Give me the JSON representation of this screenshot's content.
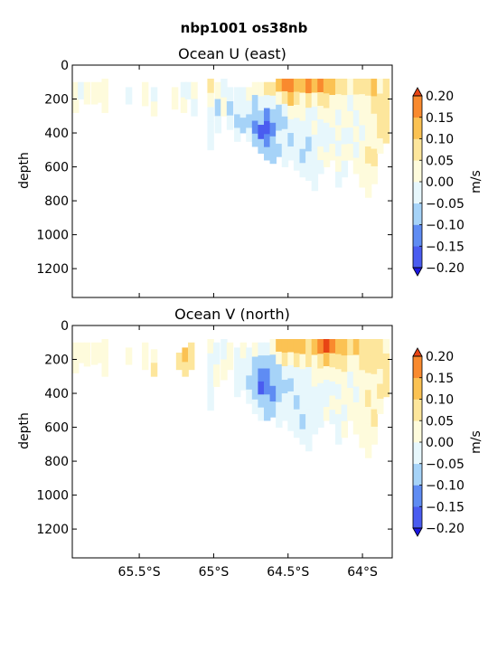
{
  "figure": {
    "suptitle": "nbp1001 os38nb"
  },
  "colorbar": {
    "label": "m/s",
    "ticks": [
      "0.20",
      "0.15",
      "0.10",
      "0.05",
      "0.00",
      "−0.05",
      "−0.10",
      "−0.15",
      "−0.20"
    ],
    "levels": [
      -0.2,
      -0.15,
      -0.1,
      -0.05,
      0.0,
      0.05,
      0.1,
      0.15,
      0.2
    ],
    "colors": [
      "#4a5cf0",
      "#5f8cf3",
      "#a6d3f8",
      "#e7f7fc",
      "#fefbdc",
      "#fde69c",
      "#fbc253",
      "#f98a2e"
    ],
    "under_color": "#1b16e0",
    "over_color": "#e84414"
  },
  "chart_data": [
    {
      "type": "heatmap",
      "title": "Ocean U (east)",
      "xlabel": "",
      "ylabel": "depth",
      "x_ticks": [
        -65.5,
        -65.0,
        -64.5,
        -64.0
      ],
      "x_tick_labels": [
        "",
        "",
        "",
        ""
      ],
      "xlim": [
        -65.95,
        -63.8
      ],
      "y_ticks": [
        0,
        200,
        400,
        600,
        800,
        1000,
        1200
      ],
      "y_tick_labels": [
        "0",
        "200",
        "400",
        "600",
        "800",
        "1000",
        "1200"
      ],
      "ylim_inverted": [
        0,
        1370
      ],
      "columns": [
        {
          "lat": -65.93,
          "top": 100,
          "bottom": 280,
          "v": [
            0.02,
            0.0
          ]
        },
        {
          "lat": -65.89,
          "top": 100,
          "bottom": 200,
          "v": [
            -0.03
          ]
        },
        {
          "lat": -65.85,
          "top": 100,
          "bottom": 230,
          "v": [
            0.03,
            0.01
          ]
        },
        {
          "lat": -65.8,
          "top": 100,
          "bottom": 230,
          "v": [
            0.02,
            0.04
          ]
        },
        {
          "lat": -65.76,
          "top": 100,
          "bottom": 220,
          "v": [
            0.01
          ]
        },
        {
          "lat": -65.73,
          "top": 80,
          "bottom": 280,
          "v": [
            0.03,
            0.0
          ]
        },
        {
          "lat": -65.57,
          "top": 130,
          "bottom": 230,
          "v": [
            -0.02
          ]
        },
        {
          "lat": -65.46,
          "top": 100,
          "bottom": 240,
          "v": [
            0.01
          ]
        },
        {
          "lat": -65.4,
          "top": 130,
          "bottom": 300,
          "v": [
            -0.02,
            0.0
          ]
        },
        {
          "lat": -65.26,
          "top": 130,
          "bottom": 260,
          "v": [
            0.02
          ]
        },
        {
          "lat": -65.2,
          "top": 100,
          "bottom": 280,
          "v": [
            -0.04,
            0.03
          ]
        },
        {
          "lat": -65.17,
          "top": 100,
          "bottom": 200,
          "v": [
            -0.02
          ]
        },
        {
          "lat": -65.13,
          "top": 100,
          "bottom": 300,
          "v": [
            0.02,
            -0.01
          ]
        },
        {
          "lat": -65.02,
          "top": 80,
          "bottom": 500,
          "v": [
            0.08,
            0.01,
            -0.04,
            -0.01,
            -0.02
          ]
        },
        {
          "lat": -64.97,
          "top": 100,
          "bottom": 400,
          "v": [
            0.02,
            -0.06,
            -0.02
          ]
        },
        {
          "lat": -64.93,
          "top": 80,
          "bottom": 300,
          "v": [
            -0.03,
            0.0
          ]
        },
        {
          "lat": -64.89,
          "top": 130,
          "bottom": 380,
          "v": [
            -0.02,
            -0.07,
            -0.01
          ]
        },
        {
          "lat": -64.84,
          "top": 130,
          "bottom": 450,
          "v": [
            -0.04,
            -0.03,
            -0.06,
            -0.02
          ]
        },
        {
          "lat": -64.8,
          "top": 130,
          "bottom": 400,
          "v": [
            -0.01,
            -0.05,
            -0.08
          ]
        },
        {
          "lat": -64.76,
          "top": 130,
          "bottom": 450,
          "v": [
            0.02,
            -0.04,
            -0.06,
            -0.03
          ]
        },
        {
          "lat": -64.72,
          "top": 100,
          "bottom": 480,
          "v": [
            0.01,
            -0.06,
            -0.08,
            -0.12,
            -0.06
          ]
        },
        {
          "lat": -64.68,
          "top": 100,
          "bottom": 520,
          "v": [
            0.03,
            -0.04,
            -0.1,
            -0.16,
            -0.08
          ]
        },
        {
          "lat": -64.64,
          "top": 100,
          "bottom": 560,
          "v": [
            0.05,
            -0.02,
            -0.12,
            -0.17,
            -0.14,
            -0.08
          ]
        },
        {
          "lat": -64.6,
          "top": 100,
          "bottom": 580,
          "v": [
            0.08,
            -0.04,
            -0.08,
            -0.12,
            -0.1,
            -0.06
          ]
        },
        {
          "lat": -64.56,
          "top": 80,
          "bottom": 540,
          "v": [
            0.12,
            0.02,
            -0.06,
            -0.08,
            -0.04,
            -0.06
          ]
        },
        {
          "lat": -64.52,
          "top": 80,
          "bottom": 600,
          "v": [
            0.16,
            0.06,
            -0.02,
            -0.06,
            -0.02,
            -0.04,
            -0.03
          ]
        },
        {
          "lat": -64.48,
          "top": 80,
          "bottom": 560,
          "v": [
            0.18,
            0.1,
            0.02,
            -0.04,
            -0.06,
            -0.02
          ]
        },
        {
          "lat": -64.44,
          "top": 80,
          "bottom": 620,
          "v": [
            0.13,
            0.08,
            0.03,
            -0.03,
            -0.05,
            -0.04,
            -0.02
          ]
        },
        {
          "lat": -64.4,
          "top": 80,
          "bottom": 660,
          "v": [
            0.14,
            0.04,
            0.01,
            -0.04,
            -0.02,
            -0.06,
            -0.03
          ]
        },
        {
          "lat": -64.36,
          "top": 80,
          "bottom": 680,
          "v": [
            0.16,
            0.06,
            -0.02,
            -0.04,
            -0.06,
            -0.03,
            -0.05
          ]
        },
        {
          "lat": -64.32,
          "top": 80,
          "bottom": 740,
          "v": [
            0.12,
            0.03,
            -0.02,
            0.01,
            -0.04,
            -0.02,
            -0.05,
            -0.03
          ]
        },
        {
          "lat": -64.28,
          "top": 80,
          "bottom": 640,
          "v": [
            0.15,
            0.05,
            0.02,
            -0.02,
            -0.04,
            0.01,
            -0.02
          ]
        },
        {
          "lat": -64.24,
          "top": 80,
          "bottom": 600,
          "v": [
            0.12,
            0.08,
            0.03,
            -0.01,
            -0.03,
            0.0
          ]
        },
        {
          "lat": -64.2,
          "top": 80,
          "bottom": 560,
          "v": [
            0.1,
            0.04,
            0.02,
            -0.02,
            0.01
          ]
        },
        {
          "lat": -64.16,
          "top": 80,
          "bottom": 720,
          "v": [
            0.06,
            0.03,
            -0.02,
            0.02,
            -0.01,
            0.0,
            -0.02
          ]
        },
        {
          "lat": -64.12,
          "top": 80,
          "bottom": 660,
          "v": [
            0.08,
            0.02,
            0.03,
            -0.02,
            0.01,
            -0.01
          ]
        },
        {
          "lat": -64.08,
          "top": 80,
          "bottom": 560,
          "v": [
            0.04,
            -0.03,
            0.02,
            -0.02,
            0.0
          ]
        },
        {
          "lat": -64.04,
          "top": 80,
          "bottom": 640,
          "v": [
            0.06,
            0.01,
            -0.02,
            0.03,
            -0.01,
            0.01
          ]
        },
        {
          "lat": -64.0,
          "top": 80,
          "bottom": 720,
          "v": [
            0.08,
            0.04,
            0.02,
            -0.01,
            0.02,
            0.03,
            0.01
          ]
        },
        {
          "lat": -63.96,
          "top": 80,
          "bottom": 780,
          "v": [
            0.07,
            0.03,
            0.04,
            0.02,
            0.05,
            0.01,
            0.03
          ]
        },
        {
          "lat": -63.92,
          "top": 80,
          "bottom": 700,
          "v": [
            0.1,
            0.06,
            0.04,
            0.03,
            0.05,
            0.02
          ]
        },
        {
          "lat": -63.88,
          "top": 80,
          "bottom": 520,
          "v": [
            0.04,
            0.08,
            0.06,
            0.07,
            0.04
          ]
        },
        {
          "lat": -63.84,
          "top": 80,
          "bottom": 460,
          "v": [
            0.05,
            0.07,
            0.09,
            0.06
          ]
        }
      ]
    },
    {
      "type": "heatmap",
      "title": "Ocean V (north)",
      "xlabel": "",
      "ylabel": "depth",
      "x_ticks": [
        -65.5,
        -65.0,
        -64.5,
        -64.0
      ],
      "x_tick_labels": [
        "65.5°S",
        "65°S",
        "64.5°S",
        "64°S"
      ],
      "xlim": [
        -65.95,
        -63.8
      ],
      "y_ticks": [
        0,
        200,
        400,
        600,
        800,
        1000,
        1200
      ],
      "y_tick_labels": [
        "0",
        "200",
        "400",
        "600",
        "800",
        "1000",
        "1200"
      ],
      "ylim_inverted": [
        0,
        1370
      ],
      "columns": [
        {
          "lat": -65.93,
          "top": 100,
          "bottom": 280,
          "v": [
            0.01,
            0.03
          ]
        },
        {
          "lat": -65.89,
          "top": 100,
          "bottom": 220,
          "v": [
            0.03
          ]
        },
        {
          "lat": -65.85,
          "top": 100,
          "bottom": 240,
          "v": [
            0.02,
            0.01
          ]
        },
        {
          "lat": -65.8,
          "top": 100,
          "bottom": 230,
          "v": [
            0.03,
            0.02
          ]
        },
        {
          "lat": -65.76,
          "top": 100,
          "bottom": 220,
          "v": [
            0.01
          ]
        },
        {
          "lat": -65.73,
          "top": 80,
          "bottom": 300,
          "v": [
            0.02,
            0.01
          ]
        },
        {
          "lat": -65.57,
          "top": 130,
          "bottom": 230,
          "v": [
            0.02
          ]
        },
        {
          "lat": -65.46,
          "top": 100,
          "bottom": 260,
          "v": [
            0.02
          ]
        },
        {
          "lat": -65.4,
          "top": 140,
          "bottom": 300,
          "v": [
            0.03,
            0.08
          ]
        },
        {
          "lat": -65.23,
          "top": 160,
          "bottom": 260,
          "v": [
            0.08
          ]
        },
        {
          "lat": -65.19,
          "top": 130,
          "bottom": 300,
          "v": [
            0.11,
            0.08
          ]
        },
        {
          "lat": -65.15,
          "top": 100,
          "bottom": 260,
          "v": [
            0.06
          ]
        },
        {
          "lat": -65.02,
          "top": 80,
          "bottom": 500,
          "v": [
            0.01,
            -0.03,
            -0.02,
            -0.05,
            -0.03
          ]
        },
        {
          "lat": -64.98,
          "top": 100,
          "bottom": 360,
          "v": [
            -0.02,
            0.02
          ]
        },
        {
          "lat": -64.93,
          "top": 80,
          "bottom": 320,
          "v": [
            -0.01,
            0.01
          ]
        },
        {
          "lat": -64.89,
          "top": 100,
          "bottom": 260,
          "v": [
            0.04
          ]
        },
        {
          "lat": -64.84,
          "top": 130,
          "bottom": 420,
          "v": [
            -0.02,
            -0.04,
            -0.03
          ]
        },
        {
          "lat": -64.8,
          "top": 100,
          "bottom": 380,
          "v": [
            0.02,
            -0.03,
            -0.04
          ]
        },
        {
          "lat": -64.76,
          "top": 130,
          "bottom": 460,
          "v": [
            -0.03,
            -0.05,
            -0.08,
            -0.04
          ]
        },
        {
          "lat": -64.72,
          "top": 100,
          "bottom": 520,
          "v": [
            0.01,
            -0.06,
            -0.1,
            -0.08,
            -0.05
          ]
        },
        {
          "lat": -64.68,
          "top": 100,
          "bottom": 560,
          "v": [
            -0.02,
            -0.08,
            -0.12,
            -0.16,
            -0.09,
            -0.05
          ]
        },
        {
          "lat": -64.64,
          "top": 100,
          "bottom": 560,
          "v": [
            -0.04,
            -0.1,
            -0.14,
            -0.12,
            -0.08,
            -0.06
          ]
        },
        {
          "lat": -64.6,
          "top": 80,
          "bottom": 540,
          "v": [
            0.04,
            -0.06,
            -0.1,
            -0.12,
            -0.06
          ]
        },
        {
          "lat": -64.56,
          "top": 80,
          "bottom": 600,
          "v": [
            0.1,
            0.02,
            -0.06,
            -0.08,
            -0.1,
            -0.04,
            -0.03
          ]
        },
        {
          "lat": -64.52,
          "top": 80,
          "bottom": 560,
          "v": [
            0.14,
            0.06,
            -0.02,
            -0.06,
            -0.04,
            -0.02
          ]
        },
        {
          "lat": -64.48,
          "top": 80,
          "bottom": 620,
          "v": [
            0.12,
            0.04,
            -0.04,
            -0.06,
            -0.03,
            -0.05,
            -0.02
          ]
        },
        {
          "lat": -64.44,
          "top": 80,
          "bottom": 660,
          "v": [
            0.11,
            0.06,
            -0.02,
            -0.04,
            -0.06,
            -0.03,
            -0.04
          ]
        },
        {
          "lat": -64.4,
          "top": 80,
          "bottom": 700,
          "v": [
            0.14,
            0.03,
            -0.03,
            -0.05,
            -0.03,
            -0.06,
            -0.02
          ]
        },
        {
          "lat": -64.36,
          "top": 80,
          "bottom": 740,
          "v": [
            0.09,
            0.05,
            -0.01,
            -0.04,
            -0.02,
            -0.04,
            -0.03,
            -0.02
          ]
        },
        {
          "lat": -64.32,
          "top": 80,
          "bottom": 640,
          "v": [
            0.13,
            0.04,
            0.01,
            -0.03,
            -0.05,
            -0.02
          ]
        },
        {
          "lat": -64.28,
          "top": 80,
          "bottom": 600,
          "v": [
            0.18,
            0.08,
            0.02,
            -0.02,
            -0.04,
            -0.01
          ]
        },
        {
          "lat": -64.24,
          "top": 80,
          "bottom": 560,
          "v": [
            0.21,
            0.1,
            0.04,
            -0.01,
            -0.03,
            0.01
          ]
        },
        {
          "lat": -64.2,
          "top": 80,
          "bottom": 580,
          "v": [
            0.16,
            0.07,
            0.02,
            -0.03,
            0.01,
            -0.02
          ]
        },
        {
          "lat": -64.16,
          "top": 80,
          "bottom": 700,
          "v": [
            0.12,
            0.05,
            0.03,
            -0.02,
            0.02,
            -0.01,
            -0.03
          ]
        },
        {
          "lat": -64.12,
          "top": 80,
          "bottom": 660,
          "v": [
            0.1,
            0.06,
            0.01,
            0.03,
            -0.02,
            0.02
          ]
        },
        {
          "lat": -64.08,
          "top": 80,
          "bottom": 560,
          "v": [
            0.08,
            0.02,
            -0.02,
            0.01,
            0.0
          ]
        },
        {
          "lat": -64.04,
          "top": 80,
          "bottom": 640,
          "v": [
            0.12,
            0.04,
            0.02,
            -0.01,
            0.03,
            0.01
          ]
        },
        {
          "lat": -64.0,
          "top": 80,
          "bottom": 720,
          "v": [
            0.09,
            0.06,
            0.03,
            0.04,
            0.01,
            0.02,
            0.03
          ]
        },
        {
          "lat": -63.96,
          "top": 80,
          "bottom": 780,
          "v": [
            0.07,
            0.05,
            0.03,
            0.06,
            0.02,
            0.04,
            0.03
          ]
        },
        {
          "lat": -63.92,
          "top": 80,
          "bottom": 700,
          "v": [
            0.06,
            0.08,
            0.04,
            0.02,
            0.05,
            0.03
          ]
        },
        {
          "lat": -63.88,
          "top": 80,
          "bottom": 520,
          "v": [
            0.05,
            0.07,
            0.04,
            0.06,
            0.03
          ]
        },
        {
          "lat": -63.84,
          "top": 80,
          "bottom": 420,
          "v": [
            0.04,
            0.06,
            0.08,
            0.05
          ]
        }
      ]
    }
  ]
}
